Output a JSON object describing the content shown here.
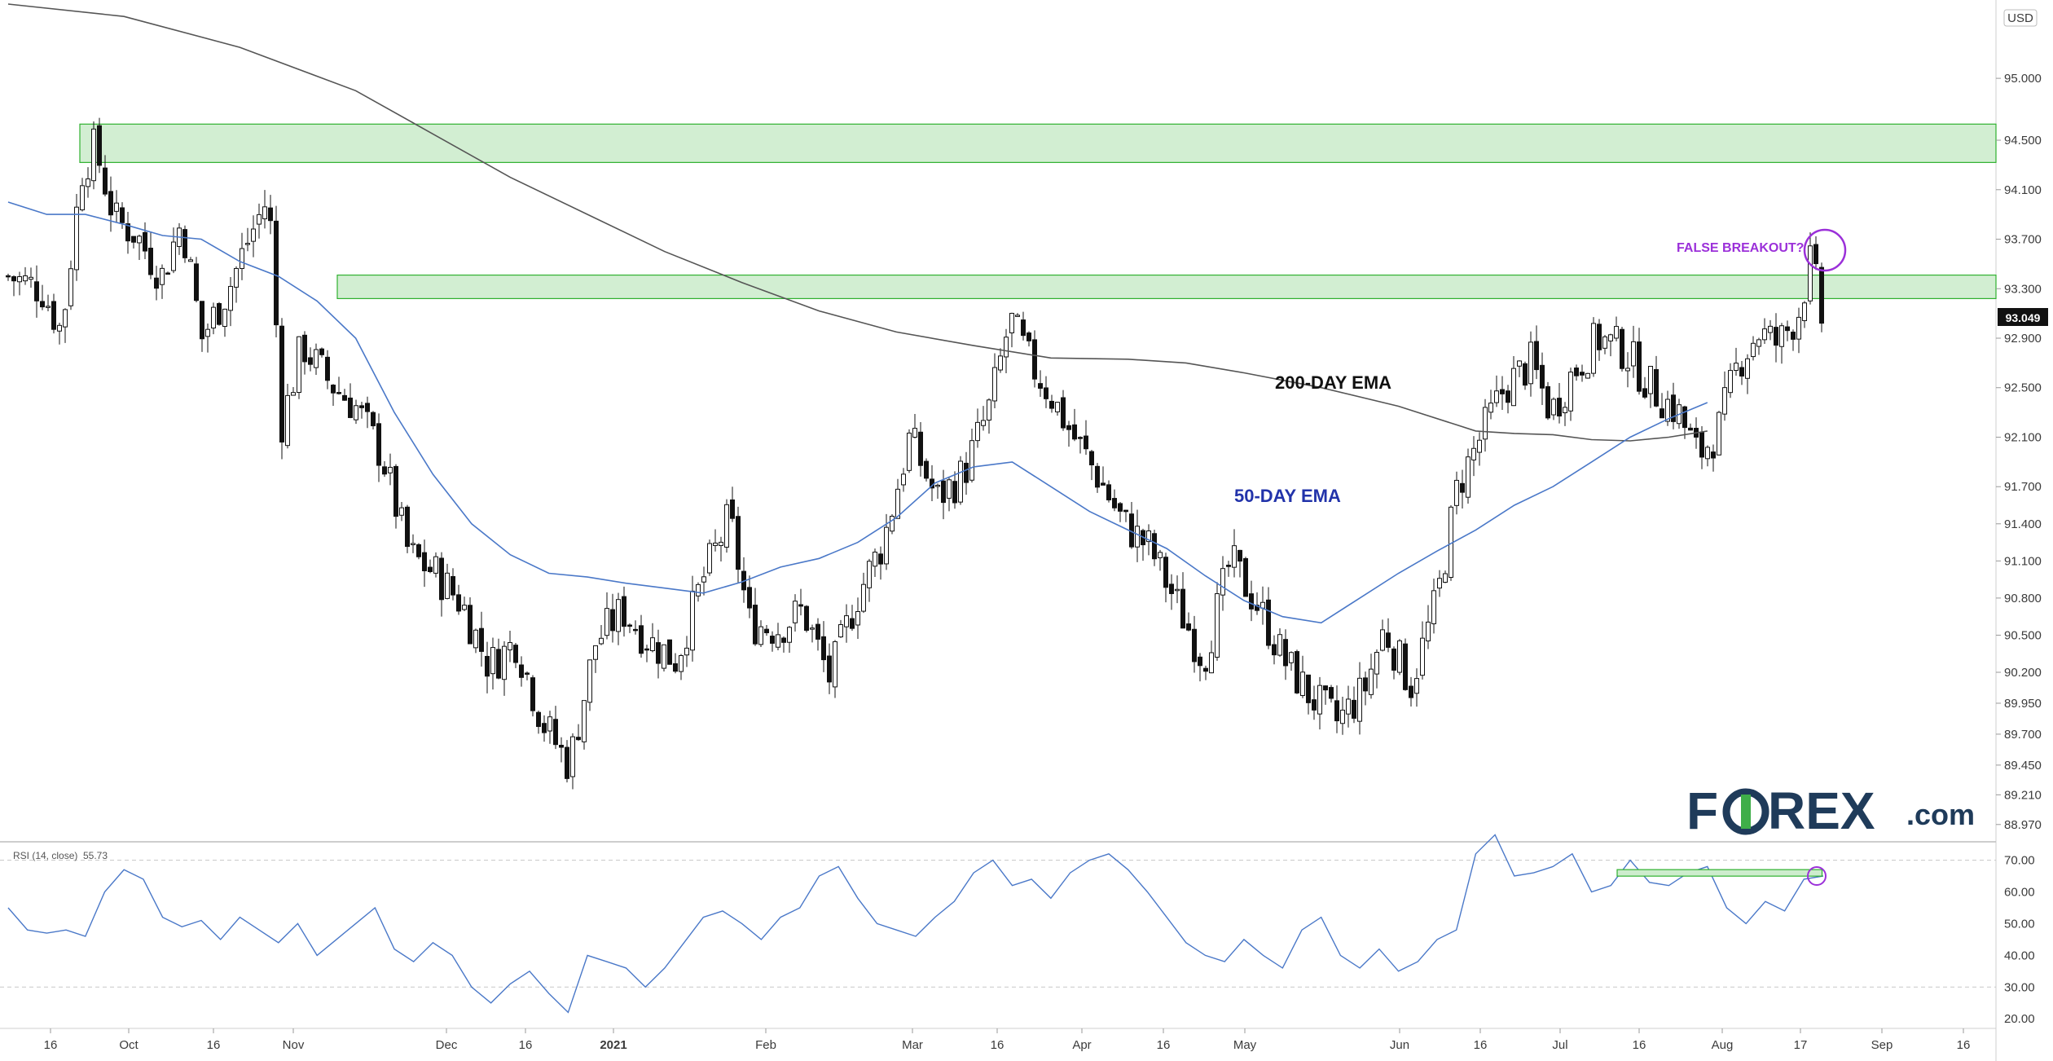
{
  "chart_data": {
    "type": "candlestick",
    "currency": "USD",
    "last_price": "93.049",
    "y_ticks": [
      "95.000",
      "94.500",
      "94.100",
      "93.700",
      "93.300",
      "92.900",
      "92.500",
      "92.100",
      "91.700",
      "91.400",
      "91.100",
      "90.800",
      "90.500",
      "90.200",
      "89.950",
      "89.700",
      "89.450",
      "89.210",
      "88.970"
    ],
    "y_range": [
      88.85,
      95.6
    ],
    "x_ticks": [
      "16",
      "Oct",
      "16",
      "Nov",
      "Dec",
      "16",
      "2021",
      "Feb",
      "Mar",
      "16",
      "Apr",
      "16",
      "May",
      "Jun",
      "16",
      "Jul",
      "16",
      "Aug",
      "17",
      "Sep",
      "16"
    ],
    "zones": [
      {
        "name": "upper-resistance",
        "low": 94.32,
        "high": 94.63
      },
      {
        "name": "middle-resistance",
        "low": 93.22,
        "high": 93.41
      }
    ],
    "annotations": {
      "ema200": "200-DAY EMA",
      "ema50": "50-DAY EMA",
      "false_breakout": "FALSE BREAKOUT?"
    },
    "ema200_points": [
      [
        0,
        95.6
      ],
      [
        30,
        95.5
      ],
      [
        60,
        95.25
      ],
      [
        90,
        94.9
      ],
      [
        110,
        94.55
      ],
      [
        130,
        94.2
      ],
      [
        150,
        93.9
      ],
      [
        170,
        93.6
      ],
      [
        190,
        93.35
      ],
      [
        210,
        93.12
      ],
      [
        230,
        92.95
      ],
      [
        250,
        92.84
      ],
      [
        270,
        92.74
      ],
      [
        290,
        92.73
      ],
      [
        305,
        92.7
      ],
      [
        320,
        92.62
      ],
      [
        340,
        92.5
      ],
      [
        360,
        92.35
      ],
      [
        375,
        92.2
      ],
      [
        380,
        92.15
      ],
      [
        390,
        92.13
      ],
      [
        400,
        92.12
      ],
      [
        410,
        92.08
      ],
      [
        420,
        92.07
      ],
      [
        430,
        92.1
      ],
      [
        440,
        92.15
      ]
    ],
    "ema50_points": [
      [
        0,
        94.0
      ],
      [
        10,
        93.9
      ],
      [
        20,
        93.9
      ],
      [
        30,
        93.82
      ],
      [
        40,
        93.73
      ],
      [
        50,
        93.7
      ],
      [
        60,
        93.52
      ],
      [
        70,
        93.4
      ],
      [
        80,
        93.2
      ],
      [
        90,
        92.9
      ],
      [
        100,
        92.3
      ],
      [
        110,
        91.8
      ],
      [
        120,
        91.4
      ],
      [
        130,
        91.15
      ],
      [
        140,
        91.0
      ],
      [
        150,
        90.97
      ],
      [
        160,
        90.92
      ],
      [
        170,
        90.88
      ],
      [
        180,
        90.84
      ],
      [
        190,
        90.93
      ],
      [
        200,
        91.05
      ],
      [
        210,
        91.12
      ],
      [
        220,
        91.25
      ],
      [
        230,
        91.45
      ],
      [
        240,
        91.73
      ],
      [
        250,
        91.86
      ],
      [
        260,
        91.9
      ],
      [
        270,
        91.7
      ],
      [
        280,
        91.5
      ],
      [
        290,
        91.35
      ],
      [
        300,
        91.2
      ],
      [
        310,
        90.98
      ],
      [
        320,
        90.78
      ],
      [
        330,
        90.65
      ],
      [
        340,
        90.6
      ],
      [
        350,
        90.8
      ],
      [
        360,
        91.0
      ],
      [
        370,
        91.18
      ],
      [
        380,
        91.35
      ],
      [
        390,
        91.55
      ],
      [
        400,
        91.7
      ],
      [
        410,
        91.9
      ],
      [
        420,
        92.1
      ],
      [
        430,
        92.25
      ],
      [
        440,
        92.38
      ]
    ],
    "rsi": {
      "label": "RSI (14, close)",
      "value": "55.73",
      "y_ticks": [
        "70.00",
        "60.00",
        "50.00",
        "40.00",
        "30.00",
        "20.00"
      ],
      "y_range": [
        18,
        74
      ],
      "points": [
        [
          0,
          55
        ],
        [
          5,
          48
        ],
        [
          10,
          47
        ],
        [
          15,
          48
        ],
        [
          20,
          46
        ],
        [
          25,
          60
        ],
        [
          30,
          67
        ],
        [
          35,
          64
        ],
        [
          40,
          52
        ],
        [
          45,
          49
        ],
        [
          50,
          51
        ],
        [
          55,
          45
        ],
        [
          60,
          52
        ],
        [
          65,
          48
        ],
        [
          70,
          44
        ],
        [
          75,
          50
        ],
        [
          80,
          40
        ],
        [
          85,
          45
        ],
        [
          90,
          50
        ],
        [
          95,
          55
        ],
        [
          100,
          42
        ],
        [
          105,
          38
        ],
        [
          110,
          44
        ],
        [
          115,
          40
        ],
        [
          120,
          30
        ],
        [
          125,
          25
        ],
        [
          130,
          31
        ],
        [
          135,
          35
        ],
        [
          140,
          28
        ],
        [
          145,
          22
        ],
        [
          150,
          40
        ],
        [
          155,
          38
        ],
        [
          160,
          36
        ],
        [
          165,
          30
        ],
        [
          170,
          36
        ],
        [
          175,
          44
        ],
        [
          180,
          52
        ],
        [
          185,
          54
        ],
        [
          190,
          50
        ],
        [
          195,
          45
        ],
        [
          200,
          52
        ],
        [
          205,
          55
        ],
        [
          210,
          65
        ],
        [
          215,
          68
        ],
        [
          220,
          58
        ],
        [
          225,
          50
        ],
        [
          230,
          48
        ],
        [
          235,
          46
        ],
        [
          240,
          52
        ],
        [
          245,
          57
        ],
        [
          250,
          66
        ],
        [
          255,
          70
        ],
        [
          260,
          62
        ],
        [
          265,
          64
        ],
        [
          270,
          58
        ],
        [
          275,
          66
        ],
        [
          280,
          70
        ],
        [
          285,
          72
        ],
        [
          290,
          67
        ],
        [
          295,
          60
        ],
        [
          300,
          52
        ],
        [
          305,
          44
        ],
        [
          310,
          40
        ],
        [
          315,
          38
        ],
        [
          320,
          45
        ],
        [
          325,
          40
        ],
        [
          330,
          36
        ],
        [
          335,
          48
        ],
        [
          340,
          52
        ],
        [
          345,
          40
        ],
        [
          350,
          36
        ],
        [
          355,
          42
        ],
        [
          360,
          35
        ],
        [
          365,
          38
        ],
        [
          370,
          45
        ],
        [
          375,
          48
        ],
        [
          380,
          72
        ],
        [
          385,
          78
        ],
        [
          390,
          65
        ],
        [
          395,
          66
        ],
        [
          400,
          68
        ],
        [
          405,
          72
        ],
        [
          410,
          60
        ],
        [
          415,
          62
        ],
        [
          420,
          70
        ],
        [
          425,
          63
        ],
        [
          430,
          62
        ],
        [
          435,
          66
        ],
        [
          440,
          68
        ],
        [
          445,
          55
        ],
        [
          450,
          50
        ],
        [
          455,
          57
        ],
        [
          460,
          54
        ],
        [
          465,
          64
        ],
        [
          470,
          65
        ]
      ],
      "divergence_line": [
        [
          410,
          66
        ],
        [
          468,
          66
        ]
      ]
    },
    "candles_note": "approximate daily USD index candles"
  },
  "brand": {
    "logo_text_a": "F",
    "logo_text_b": "REX",
    "logo_suffix": ".com"
  },
  "colors": {
    "zone_fill": "#cdeccd",
    "zone_stroke": "#2fb12f",
    "ema50": "#4a78c8",
    "ema200": "#555555",
    "annotation_purple": "#9b30d9",
    "ema50_label": "#2233aa",
    "logo_blue": "#1f3b5a",
    "logo_green": "#3fae49"
  }
}
